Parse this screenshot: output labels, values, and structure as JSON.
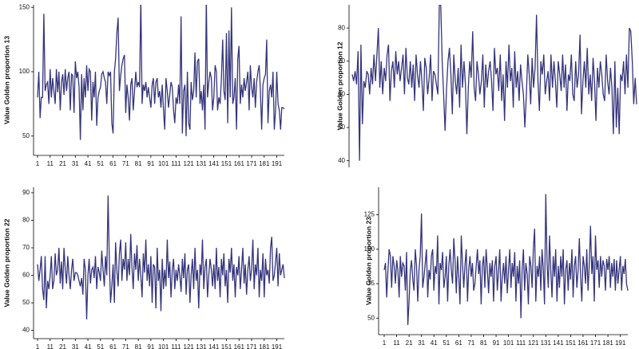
{
  "chart_data": [
    {
      "type": "line",
      "y_label": "Value Golden proportion 13",
      "color": "#34347c",
      "xlim": [
        1,
        197
      ],
      "xticks": [
        1,
        11,
        21,
        31,
        41,
        51,
        61,
        71,
        81,
        91,
        101,
        111,
        121,
        131,
        141,
        151,
        161,
        171,
        181,
        191
      ],
      "ylim": [
        35,
        152
      ],
      "yticks": [
        50,
        100,
        150
      ],
      "values": [
        80,
        100,
        64,
        80,
        80,
        145,
        85,
        90,
        92,
        75,
        102,
        80,
        95,
        85,
        75,
        102,
        84,
        100,
        70,
        92,
        98,
        82,
        102,
        85,
        95,
        100,
        70,
        98,
        97,
        68,
        108,
        95,
        100,
        88,
        47,
        98,
        70,
        95,
        80,
        105,
        85,
        102,
        100,
        62,
        92,
        80,
        100,
        58,
        80,
        85,
        88,
        98,
        100,
        95,
        92,
        75,
        100,
        97,
        100,
        60,
        52,
        100,
        110,
        130,
        142,
        85,
        97,
        105,
        110,
        113,
        68,
        90,
        80,
        62,
        90,
        95,
        70,
        85,
        100,
        88,
        92,
        88,
        157,
        75,
        90,
        85,
        92,
        80,
        88,
        80,
        72,
        90,
        95,
        75,
        92,
        95,
        80,
        85,
        72,
        90,
        70,
        55,
        95,
        85,
        72,
        82,
        92,
        88,
        70,
        60,
        80,
        75,
        90,
        75,
        143,
        52,
        85,
        90,
        50,
        100,
        60,
        55,
        92,
        78,
        85,
        115,
        80,
        108,
        110,
        75,
        85,
        70,
        90,
        55,
        157,
        80,
        92,
        100,
        95,
        70,
        80,
        105,
        100,
        70,
        80,
        75,
        95,
        125,
        85,
        78,
        130,
        60,
        132,
        80,
        150,
        75,
        80,
        95,
        55,
        110,
        120,
        75,
        90,
        80,
        95,
        85,
        92,
        100,
        70,
        105,
        88,
        80,
        95,
        72,
        92,
        100,
        105,
        85,
        55,
        90,
        95,
        98,
        125,
        60,
        85,
        90,
        80,
        100,
        55,
        70,
        100,
        75,
        70,
        55,
        72,
        72,
        71
      ]
    },
    {
      "type": "line",
      "y_label": "Value Golden proportion 12",
      "color": "#34347c",
      "xlim": [
        1,
        197
      ],
      "ylim": [
        38,
        87
      ],
      "yticks": [
        40,
        50,
        60,
        70,
        80
      ],
      "values": [
        66,
        64,
        67,
        63,
        73,
        40,
        75,
        51,
        64,
        62,
        67,
        66,
        60,
        68,
        63,
        72,
        64,
        72,
        80,
        62,
        70,
        60,
        68,
        64,
        72,
        75,
        58,
        67,
        70,
        62,
        73,
        66,
        70,
        64,
        68,
        72,
        60,
        74,
        65,
        63,
        70,
        62,
        69,
        58,
        72,
        66,
        62,
        70,
        64,
        55,
        71,
        68,
        60,
        65,
        72,
        58,
        67,
        66,
        63,
        60,
        87,
        87,
        70,
        60,
        49,
        62,
        70,
        74,
        66,
        54,
        72,
        64,
        60,
        68,
        56,
        75,
        62,
        70,
        63,
        48,
        62,
        70,
        65,
        79,
        62,
        58,
        70,
        66,
        60,
        64,
        72,
        56,
        69,
        62,
        67,
        70,
        64,
        55,
        74,
        66,
        68,
        61,
        72,
        58,
        66,
        52,
        70,
        62,
        75,
        64,
        68,
        56,
        73,
        62,
        67,
        58,
        69,
        64,
        60,
        50,
        60,
        72,
        66,
        57,
        71,
        62,
        68,
        84,
        64,
        55,
        70,
        66,
        72,
        60,
        64,
        67,
        58,
        72,
        62,
        70,
        64,
        56,
        70,
        66,
        61,
        72,
        62,
        69,
        55,
        66,
        64,
        72,
        60,
        58,
        70,
        62,
        66,
        78,
        54,
        64,
        70,
        62,
        74,
        60,
        66,
        58,
        71,
        64,
        52,
        68,
        62,
        70,
        66,
        60,
        58,
        72,
        64,
        60,
        68,
        62,
        48,
        70,
        50,
        62,
        48,
        66,
        64,
        70,
        60,
        72,
        62,
        80,
        79,
        70,
        57,
        65,
        57
      ]
    },
    {
      "type": "line",
      "y_label": "Value Golden proportion 22",
      "color": "#34347c",
      "xlim": [
        1,
        197
      ],
      "xticks": [
        1,
        11,
        21,
        31,
        41,
        51,
        61,
        71,
        81,
        91,
        101,
        111,
        121,
        131,
        141,
        151,
        161,
        171,
        181,
        191
      ],
      "ylim": [
        37,
        92
      ],
      "yticks": [
        40,
        50,
        60,
        70,
        80,
        90
      ],
      "values": [
        64,
        58,
        62,
        67,
        55,
        51,
        67,
        48,
        58,
        55,
        60,
        67,
        55,
        58,
        68,
        60,
        62,
        70,
        57,
        65,
        55,
        70,
        62,
        57,
        67,
        60,
        55,
        62,
        66,
        58,
        61,
        61,
        60,
        58,
        56,
        59,
        53,
        66,
        62,
        44,
        60,
        66,
        57,
        62,
        63,
        59,
        67,
        55,
        63,
        61,
        58,
        69,
        62,
        56,
        67,
        60,
        89,
        65,
        50,
        56,
        64,
        50,
        72,
        62,
        56,
        68,
        73,
        58,
        66,
        62,
        72,
        58,
        66,
        60,
        75,
        63,
        55,
        68,
        62,
        71,
        58,
        66,
        60,
        52,
        68,
        61,
        73,
        58,
        64,
        56,
        67,
        50,
        64,
        63,
        48,
        70,
        58,
        62,
        47,
        66,
        55,
        62,
        56,
        73,
        59,
        65,
        52,
        62,
        66,
        55,
        62,
        58,
        64,
        60,
        54,
        66,
        59,
        68,
        53,
        62,
        64,
        50,
        60,
        66,
        55,
        70,
        58,
        62,
        48,
        64,
        60,
        73,
        55,
        63,
        66,
        52,
        60,
        66,
        62,
        56,
        64,
        55,
        70,
        58,
        63,
        52,
        66,
        60,
        68,
        56,
        62,
        50,
        66,
        61,
        70,
        58,
        64,
        52,
        63,
        60,
        67,
        55,
        62,
        70,
        57,
        64,
        53,
        62,
        67,
        58,
        62,
        73,
        55,
        64,
        60,
        70,
        52,
        62,
        58,
        68,
        52,
        66,
        60,
        62,
        57,
        70,
        74,
        58,
        60,
        65,
        70,
        56,
        68,
        60,
        62,
        64,
        59
      ]
    },
    {
      "type": "line",
      "y_label": "Value Golden proportion 23",
      "color": "#34347c",
      "xlim": [
        1,
        197
      ],
      "xticks": [
        1,
        11,
        21,
        31,
        41,
        51,
        61,
        71,
        81,
        91,
        101,
        111,
        121,
        131,
        141,
        151,
        161,
        171,
        181,
        191
      ],
      "ylim": [
        38,
        145
      ],
      "yticks": [
        50,
        75,
        100,
        125
      ],
      "values": [
        85,
        90,
        65,
        85,
        100,
        95,
        72,
        95,
        88,
        75,
        92,
        85,
        65,
        95,
        80,
        90,
        88,
        70,
        98,
        45,
        62,
        85,
        92,
        78,
        70,
        100,
        88,
        62,
        85,
        95,
        126,
        72,
        80,
        90,
        100,
        65,
        85,
        78,
        95,
        100,
        70,
        88,
        82,
        110,
        60,
        90,
        85,
        98,
        72,
        80,
        95,
        62,
        88,
        100,
        85,
        75,
        108,
        92,
        68,
        95,
        80,
        60,
        110,
        90,
        72,
        88,
        100,
        62,
        85,
        95,
        80,
        90,
        70,
        75,
        88,
        100,
        82,
        92,
        60,
        88,
        95,
        72,
        100,
        85,
        68,
        90,
        80,
        92,
        62,
        88,
        95,
        70,
        85,
        100,
        62,
        80,
        90,
        75,
        95,
        68,
        85,
        100,
        72,
        90,
        80,
        98,
        62,
        88,
        75,
        92,
        50,
        85,
        100,
        70,
        90,
        82,
        60,
        95,
        88,
        72,
        100,
        115,
        62,
        88,
        80,
        95,
        70,
        100,
        85,
        60,
        140,
        90,
        72,
        110,
        85,
        65,
        95,
        80,
        100,
        62,
        88,
        72,
        95,
        80,
        100,
        60,
        85,
        92,
        70,
        90,
        78,
        100,
        65,
        88,
        95,
        72,
        85,
        108,
        80,
        62,
        95,
        88,
        75,
        100,
        70,
        90,
        117,
        82,
        95,
        62,
        110,
        85,
        92,
        72,
        95,
        80,
        92,
        88,
        70,
        93,
        85,
        95,
        72,
        90,
        80,
        93,
        70,
        92,
        75,
        85,
        95,
        70,
        88,
        82,
        93,
        75,
        70
      ]
    }
  ]
}
